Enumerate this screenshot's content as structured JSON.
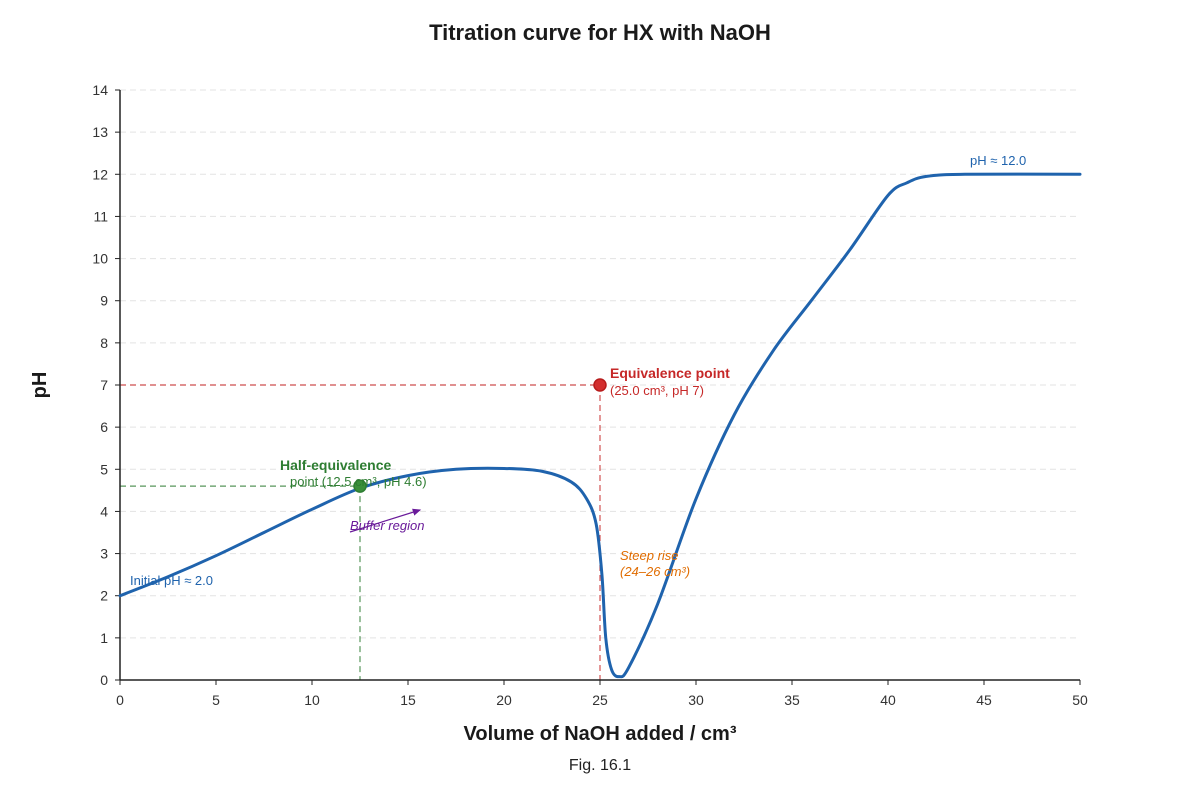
{
  "chart_data": {
    "type": "line",
    "title": "Titration curve for HX with NaOH",
    "xlabel": "Volume of NaOH added / cm³",
    "ylabel": "pH",
    "caption": "Fig. 16.1",
    "xlim": [
      0,
      50
    ],
    "ylim": [
      0,
      14
    ],
    "xticks": [
      0,
      5,
      10,
      15,
      20,
      25,
      30,
      35,
      40,
      45,
      50
    ],
    "yticks": [
      0,
      1,
      2,
      3,
      4,
      5,
      6,
      7,
      8,
      9,
      10,
      11,
      12,
      13,
      14
    ],
    "grid": true,
    "series": [
      {
        "color": "#1f63ad",
        "points": [
          [
            0,
            2.0
          ],
          [
            2.5,
            2.45
          ],
          [
            5,
            2.95
          ],
          [
            7.5,
            3.5
          ],
          [
            10,
            4.05
          ],
          [
            12.5,
            4.55
          ],
          [
            15,
            4.85
          ],
          [
            17.5,
            5.0
          ],
          [
            20,
            5.02
          ],
          [
            22,
            4.95
          ],
          [
            23.5,
            4.7
          ],
          [
            24.3,
            4.3
          ],
          [
            24.8,
            3.7
          ],
          [
            25.1,
            2.5
          ],
          [
            25.3,
            1.0
          ],
          [
            25.6,
            0.25
          ],
          [
            26,
            0.08
          ],
          [
            26.5,
            0.3
          ],
          [
            28,
            1.8
          ],
          [
            30,
            4.3
          ],
          [
            32,
            6.3
          ],
          [
            34,
            7.8
          ],
          [
            36,
            9.0
          ],
          [
            38,
            10.2
          ],
          [
            40,
            11.5
          ],
          [
            41,
            11.8
          ],
          [
            42,
            11.95
          ],
          [
            44,
            12.0
          ],
          [
            50,
            12.0
          ]
        ]
      }
    ],
    "markers": [
      {
        "x": 12.5,
        "y": 4.6,
        "color": "#2e7d32",
        "fill": "#3a8f3a"
      },
      {
        "x": 25.0,
        "y": 7.0,
        "color": "#b71c1c",
        "fill": "#d32f2f"
      }
    ],
    "guides": [
      {
        "color": "#2e7d32",
        "x": 12.5,
        "y": 4.6
      },
      {
        "color": "#c62828",
        "x": 25.0,
        "y": 7.0
      }
    ],
    "annotations": {
      "initial_ph": "Initial pH ≈ 2.0",
      "final_ph": "pH ≈ 12.0",
      "half_eq_title": "Half-equivalence",
      "half_eq_detail": "point (12.5 cm³, pH 4.6)",
      "buffer": "Buffer region",
      "eq_title": "Equivalence point",
      "eq_detail": "(25.0 cm³, pH 7)",
      "steep_line1": "Steep rise",
      "steep_line2": "(24–26 cm³)"
    },
    "colors": {
      "curve": "#1f63ad",
      "half_eq": "#2e7d32",
      "eq": "#c62828",
      "buffer": "#6a1b9a",
      "steep": "#e06c00",
      "grid": "#e3e3e3",
      "axis": "#222222"
    }
  }
}
